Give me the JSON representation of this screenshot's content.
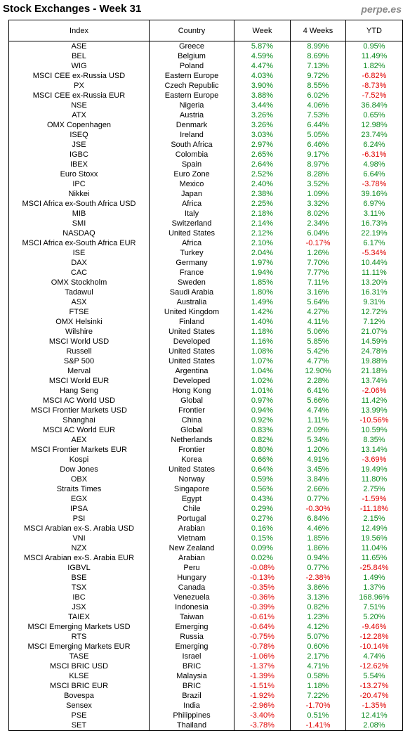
{
  "header": {
    "title": "Stock Exchanges - Week 31",
    "source": "perpe.es"
  },
  "table": {
    "columns": [
      "Index",
      "Country",
      "Week",
      "4 Weeks",
      "YTD"
    ],
    "rows": [
      [
        "ASE",
        "Greece",
        "5.87%",
        "8.99%",
        "0.95%"
      ],
      [
        "BEL",
        "Belgium",
        "4.59%",
        "8.69%",
        "11.49%"
      ],
      [
        "WIG",
        "Poland",
        "4.47%",
        "7.13%",
        "1.82%"
      ],
      [
        "MSCI CEE ex-Russia USD",
        "Eastern Europe",
        "4.03%",
        "9.72%",
        "-6.82%"
      ],
      [
        "PX",
        "Czech Republic",
        "3.90%",
        "8.55%",
        "-8.73%"
      ],
      [
        "MSCI CEE ex-Russia EUR",
        "Eastern Europe",
        "3.88%",
        "6.02%",
        "-7.52%"
      ],
      [
        "NSE",
        "Nigeria",
        "3.44%",
        "4.06%",
        "36.84%"
      ],
      [
        "ATX",
        "Austria",
        "3.26%",
        "7.53%",
        "0.65%"
      ],
      [
        "OMX Copenhagen",
        "Denmark",
        "3.26%",
        "6.44%",
        "12.98%"
      ],
      [
        "ISEQ",
        "Ireland",
        "3.03%",
        "5.05%",
        "23.74%"
      ],
      [
        "JSE",
        "South Africa",
        "2.97%",
        "6.46%",
        "6.24%"
      ],
      [
        "IGBC",
        "Colombia",
        "2.65%",
        "9.17%",
        "-6.31%"
      ],
      [
        "IBEX",
        "Spain",
        "2.64%",
        "8.97%",
        "4.98%"
      ],
      [
        "Euro Stoxx",
        "Euro Zone",
        "2.52%",
        "8.28%",
        "6.64%"
      ],
      [
        "IPC",
        "Mexico",
        "2.40%",
        "3.52%",
        "-3.78%"
      ],
      [
        "Nikkei",
        "Japan",
        "2.38%",
        "1.09%",
        "39.16%"
      ],
      [
        "MSCI Africa ex-South Africa USD",
        "Africa",
        "2.25%",
        "3.32%",
        "6.97%"
      ],
      [
        "MIB",
        "Italy",
        "2.18%",
        "8.02%",
        "3.11%"
      ],
      [
        "SMI",
        "Switzerland",
        "2.14%",
        "2.34%",
        "16.73%"
      ],
      [
        "NASDAQ",
        "United States",
        "2.12%",
        "6.04%",
        "22.19%"
      ],
      [
        "MSCI Africa ex-South Africa EUR",
        "Africa",
        "2.10%",
        "-0.17%",
        "6.17%"
      ],
      [
        "ISE",
        "Turkey",
        "2.04%",
        "1.26%",
        "-5.34%"
      ],
      [
        "DAX",
        "Germany",
        "1.97%",
        "7.70%",
        "10.44%"
      ],
      [
        "CAC",
        "France",
        "1.94%",
        "7.77%",
        "11.11%"
      ],
      [
        "OMX Stockholm",
        "Sweden",
        "1.85%",
        "7.11%",
        "13.20%"
      ],
      [
        "Tadawul",
        "Saudi Arabia",
        "1.80%",
        "3.16%",
        "16.31%"
      ],
      [
        "ASX",
        "Australia",
        "1.49%",
        "5.64%",
        "9.31%"
      ],
      [
        "FTSE",
        "United Kingdom",
        "1.42%",
        "4.27%",
        "12.72%"
      ],
      [
        "OMX Helsinki",
        "Finland",
        "1.40%",
        "4.11%",
        "7.12%"
      ],
      [
        "Wilshire",
        "United States",
        "1.18%",
        "5.06%",
        "21.07%"
      ],
      [
        "MSCI World USD",
        "Developed",
        "1.16%",
        "5.85%",
        "14.59%"
      ],
      [
        "Russell",
        "United States",
        "1.08%",
        "5.42%",
        "24.78%"
      ],
      [
        "S&P 500",
        "United States",
        "1.07%",
        "4.77%",
        "19.88%"
      ],
      [
        "Merval",
        "Argentina",
        "1.04%",
        "12.90%",
        "21.18%"
      ],
      [
        "MSCI World EUR",
        "Developed",
        "1.02%",
        "2.28%",
        "13.74%"
      ],
      [
        "Hang Seng",
        "Hong Kong",
        "1.01%",
        "6.41%",
        "-2.06%"
      ],
      [
        "MSCI AC World USD",
        "Global",
        "0.97%",
        "5.66%",
        "11.42%"
      ],
      [
        "MSCI Frontier Markets USD",
        "Frontier",
        "0.94%",
        "4.74%",
        "13.99%"
      ],
      [
        "Shanghai",
        "China",
        "0.92%",
        "1.11%",
        "-10.56%"
      ],
      [
        "MSCI AC World EUR",
        "Global",
        "0.83%",
        "2.09%",
        "10.59%"
      ],
      [
        "AEX",
        "Netherlands",
        "0.82%",
        "5.34%",
        "8.35%"
      ],
      [
        "MSCI Frontier Markets EUR",
        "Frontier",
        "0.80%",
        "1.20%",
        "13.14%"
      ],
      [
        "Kospi",
        "Korea",
        "0.66%",
        "4.91%",
        "-3.69%"
      ],
      [
        "Dow Jones",
        "United States",
        "0.64%",
        "3.45%",
        "19.49%"
      ],
      [
        "OBX",
        "Norway",
        "0.59%",
        "3.84%",
        "11.80%"
      ],
      [
        "Straits Times",
        "Singapore",
        "0.56%",
        "2.66%",
        "2.75%"
      ],
      [
        "EGX",
        "Egypt",
        "0.43%",
        "0.77%",
        "-1.59%"
      ],
      [
        "IPSA",
        "Chile",
        "0.29%",
        "-0.30%",
        "-11.18%"
      ],
      [
        "PSI",
        "Portugal",
        "0.27%",
        "6.84%",
        "2.15%"
      ],
      [
        "MSCI Arabian ex-S. Arabia USD",
        "Arabian",
        "0.16%",
        "4.46%",
        "12.49%"
      ],
      [
        "VNI",
        "Vietnam",
        "0.15%",
        "1.85%",
        "19.56%"
      ],
      [
        "NZX",
        "New Zealand",
        "0.09%",
        "1.86%",
        "11.04%"
      ],
      [
        "MSCI Arabian ex-S. Arabia EUR",
        "Arabian",
        "0.02%",
        "0.94%",
        "11.65%"
      ],
      [
        "IGBVL",
        "Peru",
        "-0.08%",
        "0.77%",
        "-25.84%"
      ],
      [
        "BSE",
        "Hungary",
        "-0.13%",
        "-2.38%",
        "1.49%"
      ],
      [
        "TSX",
        "Canada",
        "-0.35%",
        "3.86%",
        "1.37%"
      ],
      [
        "IBC",
        "Venezuela",
        "-0.36%",
        "3.13%",
        "168.96%"
      ],
      [
        "JSX",
        "Indonesia",
        "-0.39%",
        "0.82%",
        "7.51%"
      ],
      [
        "TAIEX",
        "Taiwan",
        "-0.61%",
        "1.23%",
        "5.20%"
      ],
      [
        "MSCI Emerging Markets USD",
        "Emerging",
        "-0.64%",
        "4.12%",
        "-9.46%"
      ],
      [
        "RTS",
        "Russia",
        "-0.75%",
        "5.07%",
        "-12.28%"
      ],
      [
        "MSCI Emerging Markets EUR",
        "Emerging",
        "-0.78%",
        "0.60%",
        "-10.14%"
      ],
      [
        "TASE",
        "Israel",
        "-1.06%",
        "2.17%",
        "4.74%"
      ],
      [
        "MSCI BRIC USD",
        "BRIC",
        "-1.37%",
        "4.71%",
        "-12.62%"
      ],
      [
        "KLSE",
        "Malaysia",
        "-1.39%",
        "0.58%",
        "5.54%"
      ],
      [
        "MSCI BRIC EUR",
        "BRIC",
        "-1.51%",
        "1.18%",
        "-13.27%"
      ],
      [
        "Bovespa",
        "Brazil",
        "-1.92%",
        "7.22%",
        "-20.47%"
      ],
      [
        "Sensex",
        "India",
        "-2.96%",
        "-1.70%",
        "-1.35%"
      ],
      [
        "PSE",
        "Philippines",
        "-3.40%",
        "0.51%",
        "12.41%"
      ],
      [
        "SET",
        "Thailand",
        "-3.78%",
        "-1.41%",
        "2.08%"
      ]
    ]
  }
}
